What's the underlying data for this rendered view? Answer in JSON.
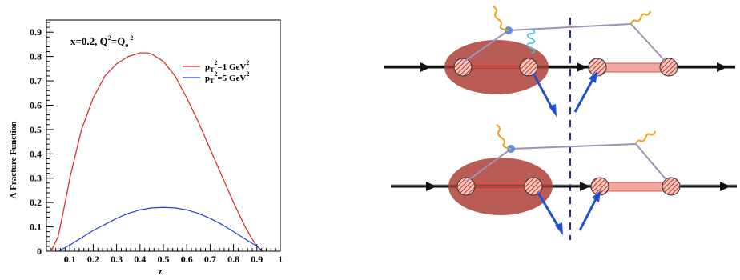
{
  "chart_data": {
    "type": "line",
    "xlabel": "z",
    "ylabel": "Λ Fracture Function",
    "xlim": [
      0,
      1
    ],
    "ylim": [
      0,
      0.95
    ],
    "x_ticks": [
      "0.1",
      "0.2",
      "0.3",
      "0.4",
      "0.5",
      "0.6",
      "0.7",
      "0.8",
      "0.9",
      "1"
    ],
    "y_ticks": [
      "0",
      "0.1",
      "0.2",
      "0.3",
      "0.4",
      "0.5",
      "0.6",
      "0.7",
      "0.8",
      "0.9"
    ],
    "annotation": {
      "prefix": "x=0.2, Q",
      "sup1": "2",
      "mid": "=Q",
      "sub": "o",
      "sup2": "2"
    },
    "series": [
      {
        "name": "p_T^2=1 GeV^2",
        "legend_parts": {
          "base": "p",
          "sub": "T",
          "sup": "2",
          "rest": "=1 GeV",
          "sup2": "2"
        },
        "color": "#e0201a",
        "x": [
          0.02,
          0.05,
          0.08,
          0.1,
          0.15,
          0.2,
          0.25,
          0.3,
          0.35,
          0.4,
          0.43,
          0.45,
          0.5,
          0.55,
          0.6,
          0.65,
          0.7,
          0.75,
          0.8,
          0.85,
          0.88,
          0.9,
          0.92,
          0.93
        ],
        "y": [
          0.0,
          0.06,
          0.2,
          0.3,
          0.5,
          0.63,
          0.72,
          0.77,
          0.8,
          0.815,
          0.815,
          0.81,
          0.78,
          0.72,
          0.63,
          0.53,
          0.42,
          0.31,
          0.2,
          0.1,
          0.05,
          0.02,
          0.005,
          0.0
        ]
      },
      {
        "name": "p_T^2=5 GeV^2",
        "legend_parts": {
          "base": "p",
          "sub": "T",
          "sup": "2",
          "rest": "=5 GeV",
          "sup2": "2"
        },
        "color": "#2040d0",
        "x": [
          0.05,
          0.1,
          0.15,
          0.2,
          0.25,
          0.3,
          0.35,
          0.4,
          0.45,
          0.5,
          0.55,
          0.6,
          0.65,
          0.7,
          0.75,
          0.8,
          0.85,
          0.9,
          0.92
        ],
        "y": [
          0.0,
          0.025,
          0.055,
          0.085,
          0.11,
          0.135,
          0.155,
          0.17,
          0.178,
          0.18,
          0.178,
          0.17,
          0.155,
          0.135,
          0.11,
          0.08,
          0.05,
          0.02,
          0.005
        ]
      }
    ]
  },
  "diagram": {
    "colors": {
      "blob": "#a83830",
      "red_lines": "#e05048",
      "beam": "#000000",
      "photon": "#f0a020",
      "gluon": "#40c0e0",
      "quark": "#2050d0",
      "gray_line": "#a090b8",
      "cut": "#203080"
    }
  }
}
